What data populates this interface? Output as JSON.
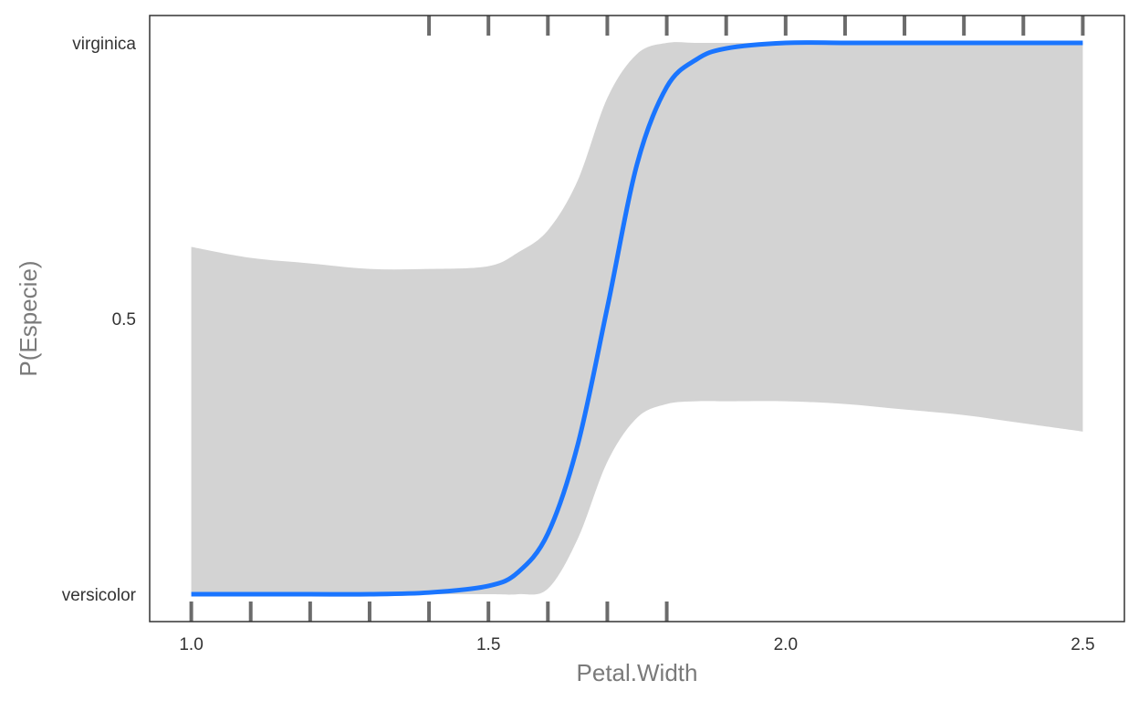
{
  "chart_data": {
    "type": "line",
    "title": "",
    "xlabel": "Petal.Width",
    "ylabel": "P(Especie)",
    "xlim": [
      0.93,
      2.57
    ],
    "ylim": [
      0,
      1
    ],
    "x_ticks": [
      1.0,
      1.5,
      2.0,
      2.5
    ],
    "x_tick_labels": [
      "1.0",
      "1.5",
      "2.0",
      "2.5"
    ],
    "y_ticks": [
      0,
      0.5,
      1
    ],
    "y_tick_labels": [
      "versicolor",
      "0.5",
      "virginica"
    ],
    "grid": false,
    "colors": {
      "line": "#1a75ff",
      "band": "#d3d3d3",
      "rug": "#6b6b6b",
      "frame": "#333333"
    },
    "series": [
      {
        "x": [
          1.0,
          1.1,
          1.2,
          1.3,
          1.4,
          1.5,
          1.55,
          1.6,
          1.65,
          1.7,
          1.75,
          1.8,
          1.85,
          1.9,
          2.0,
          2.1,
          2.2,
          2.3,
          2.4,
          2.5
        ],
        "y": [
          0.0,
          0.0,
          0.0,
          0.0,
          0.003,
          0.015,
          0.04,
          0.11,
          0.27,
          0.52,
          0.78,
          0.92,
          0.97,
          0.99,
          1.0,
          1.0,
          1.0,
          1.0,
          1.0,
          1.0
        ],
        "lower": [
          0.0,
          0.0,
          0.0,
          0.0,
          0.0,
          0.0,
          0.0,
          0.01,
          0.1,
          0.24,
          0.32,
          0.345,
          0.35,
          0.35,
          0.35,
          0.345,
          0.335,
          0.325,
          0.31,
          0.295
        ],
        "upper": [
          0.63,
          0.61,
          0.6,
          0.59,
          0.59,
          0.595,
          0.62,
          0.66,
          0.75,
          0.9,
          0.98,
          1.0,
          1.0,
          1.0,
          1.0,
          1.0,
          1.0,
          1.0,
          1.0,
          1.0
        ]
      }
    ],
    "rug_top": [
      1.4,
      1.5,
      1.6,
      1.7,
      1.8,
      1.9,
      2.0,
      2.1,
      2.2,
      2.3,
      2.4,
      2.5
    ],
    "rug_bottom": [
      1.0,
      1.1,
      1.2,
      1.3,
      1.4,
      1.5,
      1.6,
      1.7,
      1.8
    ]
  }
}
